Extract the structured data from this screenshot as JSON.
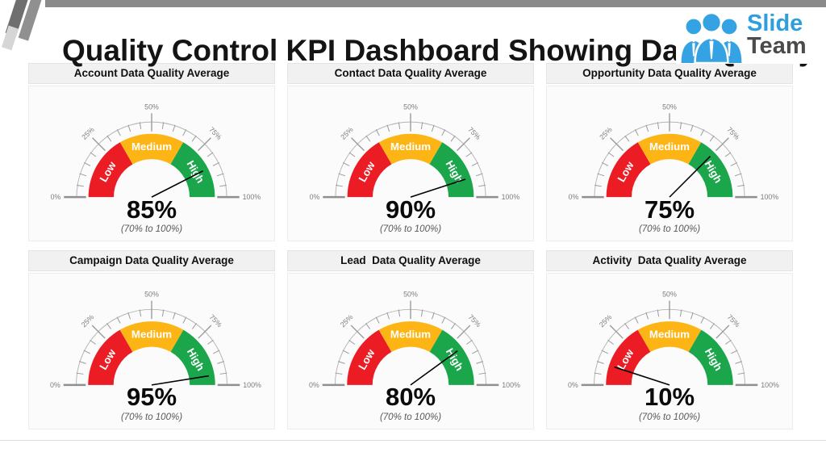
{
  "slide": {
    "title": "Quality Control KPI Dashboard Showing Data Quality",
    "accent_bar_color": "#8a8a8a"
  },
  "logo": {
    "line1": "Slide",
    "line2": "Team",
    "blue": "#2e9fde",
    "dark": "#4b4b4d"
  },
  "chart_data": {
    "type": "gauge",
    "layout": {
      "rows": 2,
      "cols": 3,
      "legend": "none",
      "grid": "off"
    },
    "axis": {
      "min": 0,
      "max": 100,
      "unit": "%",
      "start_angle_deg": 180,
      "end_angle_deg": 0,
      "major_ticks": [
        0,
        25,
        50,
        75,
        100
      ],
      "major_tick_labels": [
        "0%",
        "25%",
        "50%",
        "75%",
        "100%"
      ],
      "minor_tick_step": 5
    },
    "zones": [
      {
        "label": "Low",
        "from_pct": 0,
        "to_pct": 33.33,
        "color": "#ec1c24"
      },
      {
        "label": "Medium",
        "from_pct": 33.33,
        "to_pct": 66.67,
        "color": "#fcb514"
      },
      {
        "label": "High",
        "from_pct": 66.67,
        "to_pct": 100,
        "color": "#1ca64c"
      }
    ],
    "gauges": [
      {
        "title": "Account Data Quality Average",
        "value_pct": 85,
        "value_label": "85%",
        "range_note": "(70% to 100%)"
      },
      {
        "title": "Contact Data Quality Average",
        "value_pct": 90,
        "value_label": "90%",
        "range_note": "(70% to 100%)"
      },
      {
        "title": "Opportunity Data Quality Average",
        "value_pct": 75,
        "value_label": "75%",
        "range_note": "(70% to 100%)"
      },
      {
        "title": "Campaign Data Quality Average",
        "value_pct": 95,
        "value_label": "95%",
        "range_note": "(70% to 100%)"
      },
      {
        "title": "Lead  Data Quality Average",
        "value_pct": 80,
        "value_label": "80%",
        "range_note": "(70% to 100%)"
      },
      {
        "title": "Activity  Data Quality Average",
        "value_pct": 10,
        "value_label": "10%",
        "range_note": "(70% to 100%)"
      }
    ],
    "needle_color": "#000000",
    "tick_color": "#9a9a9a",
    "arc_color": "#b5b5b5",
    "tick_label_color": "#7d7d7d"
  }
}
